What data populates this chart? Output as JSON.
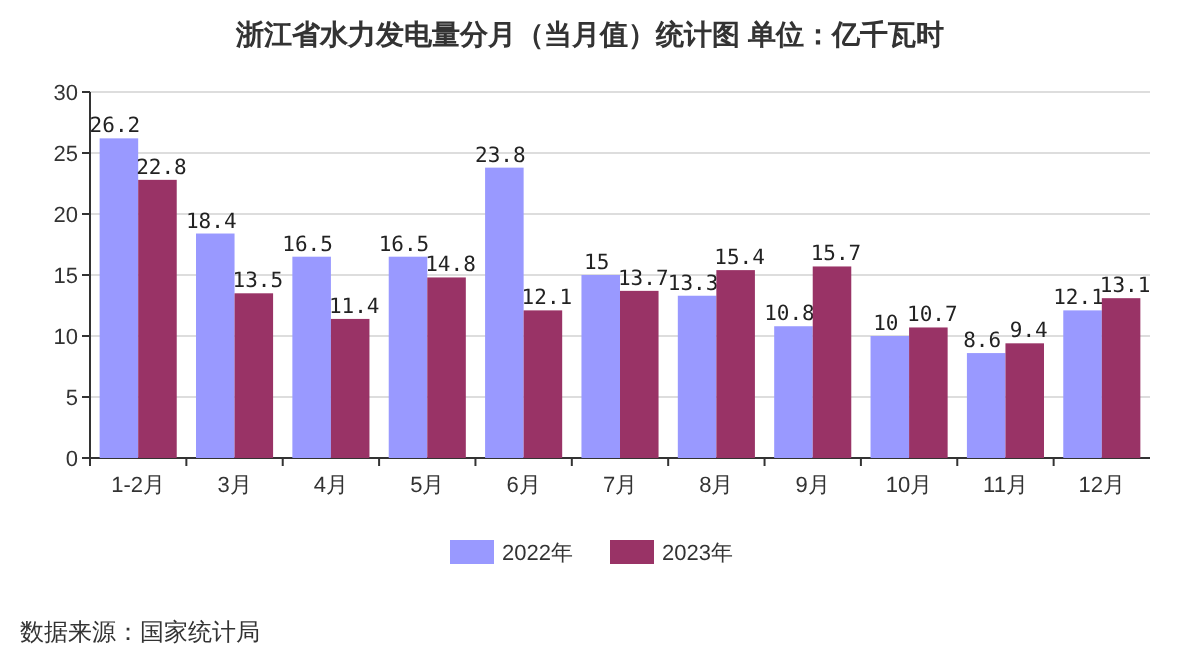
{
  "chart_data": {
    "type": "bar",
    "title": "浙江省水力发电量分月（当月值）统计图 单位：亿千瓦时",
    "categories": [
      "1-2月",
      "3月",
      "4月",
      "5月",
      "6月",
      "7月",
      "8月",
      "9月",
      "10月",
      "11月",
      "12月"
    ],
    "series": [
      {
        "name": "2022年",
        "color": "#9999ff",
        "values": [
          26.2,
          18.4,
          16.5,
          16.5,
          23.8,
          15,
          13.3,
          10.8,
          10,
          8.6,
          12.1
        ]
      },
      {
        "name": "2023年",
        "color": "#993366",
        "values": [
          22.8,
          13.5,
          11.4,
          14.8,
          12.1,
          13.7,
          15.4,
          15.7,
          10.7,
          9.4,
          13.1
        ]
      }
    ],
    "ylim": [
      0,
      30
    ],
    "yticks": [
      0,
      5,
      10,
      15,
      20,
      25,
      30
    ],
    "grid": "y",
    "legend": "bottom",
    "data_labels": true,
    "annotations": [
      "数据来源：国家统计局"
    ]
  }
}
